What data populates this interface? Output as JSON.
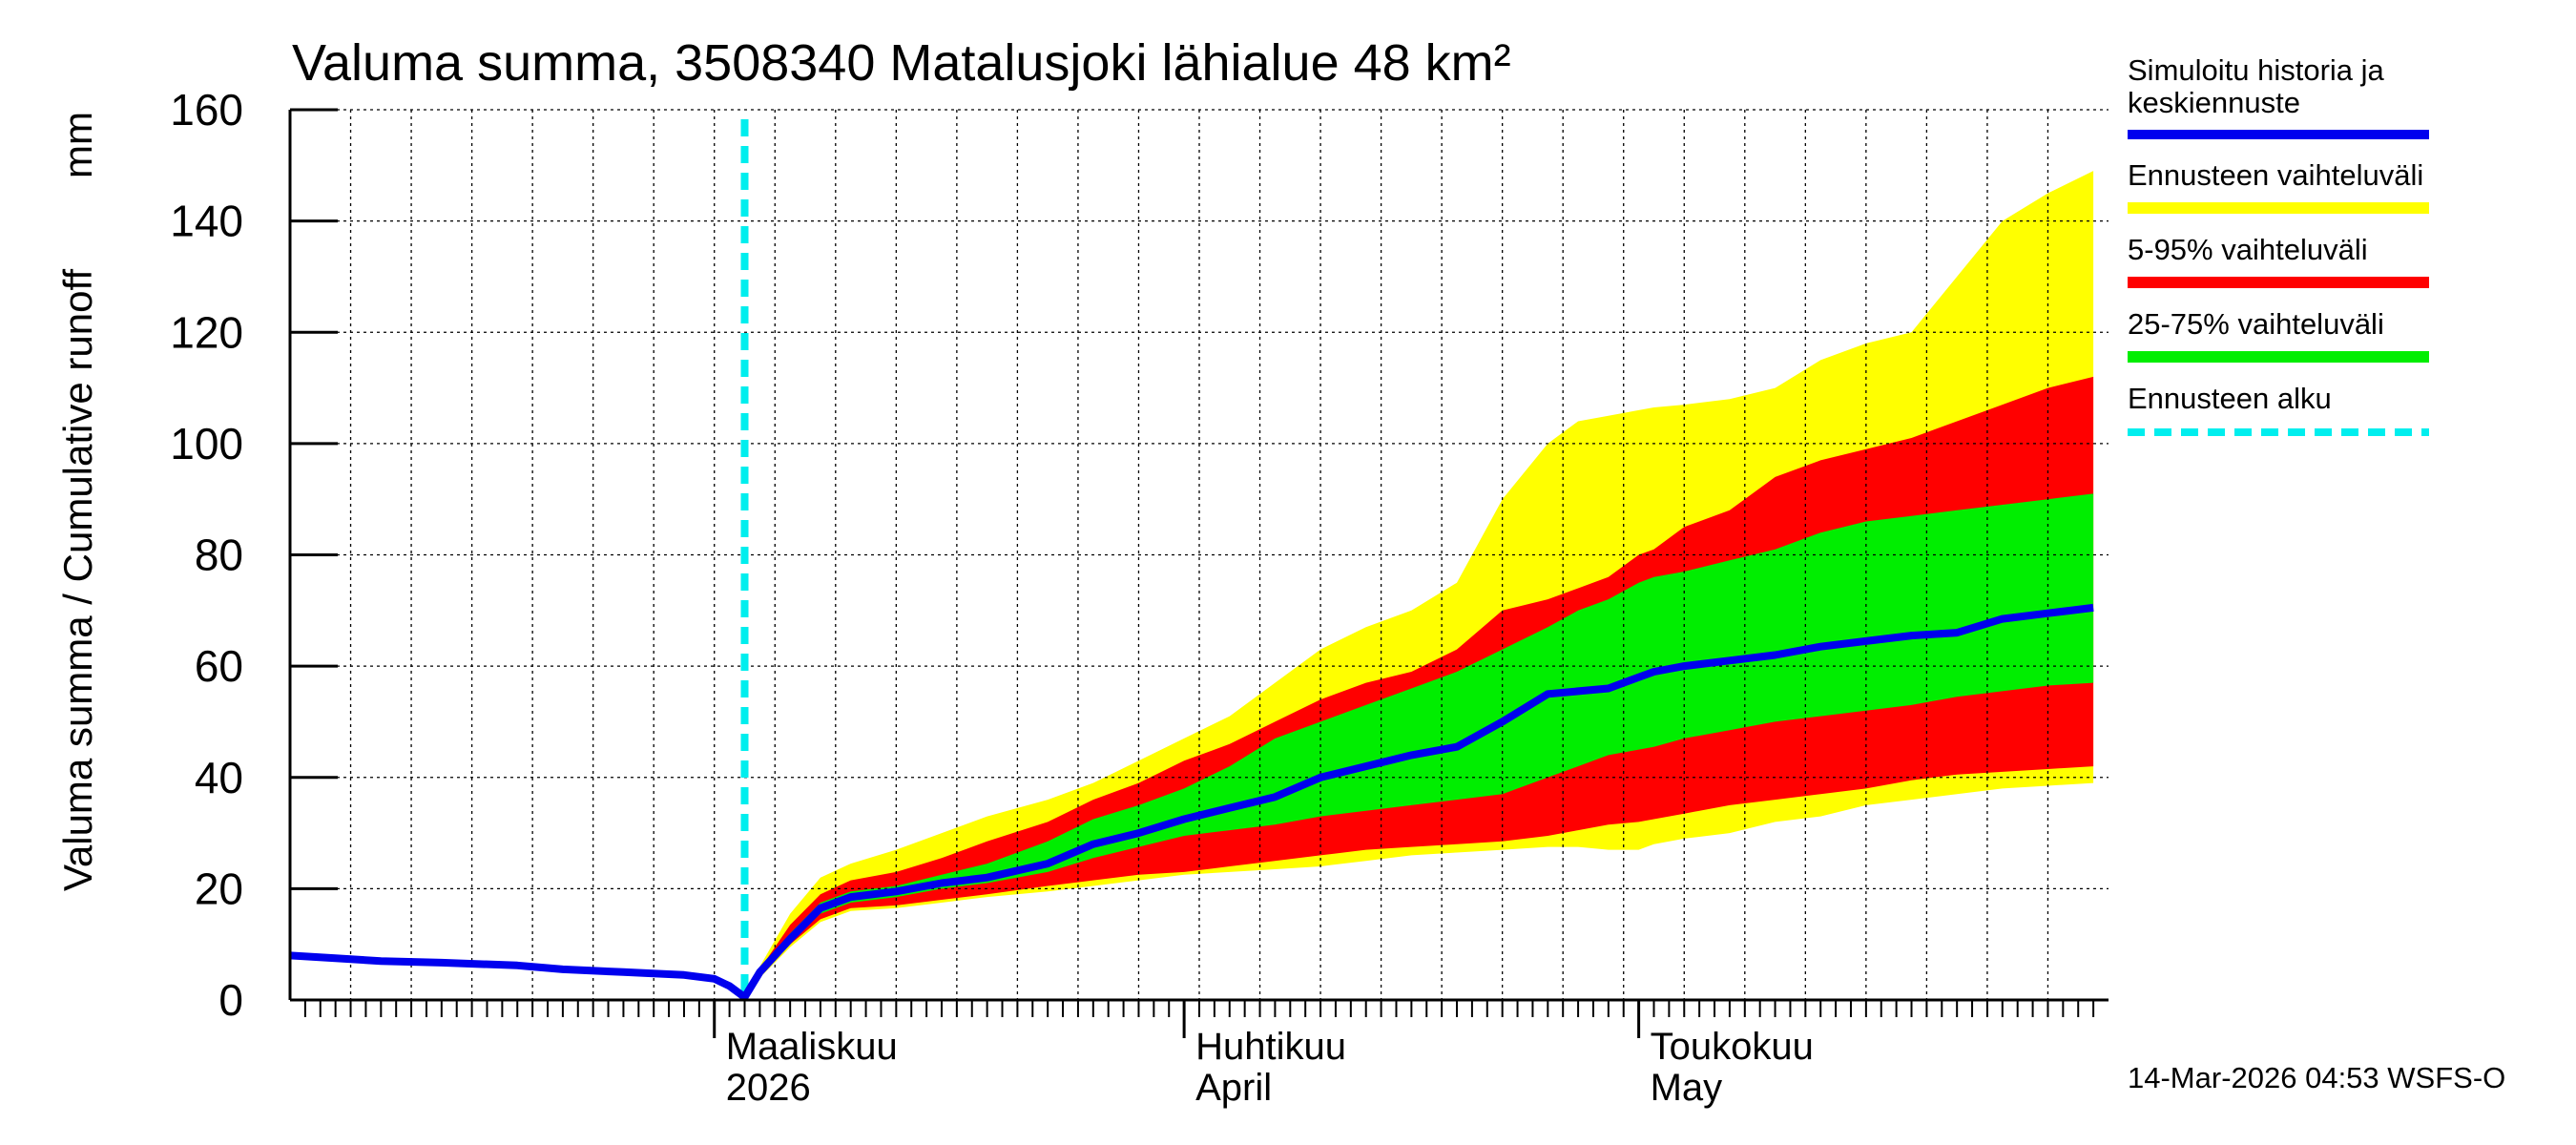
{
  "chart_data": {
    "type": "area",
    "title": "Valuma summa, 3508340 Matalusjoki lähialue 48 km²",
    "ylabel_left": "Valuma summa / Cumulative runoff",
    "ylabel_right": "mm",
    "ylim": [
      0,
      160
    ],
    "yticks": [
      "0",
      "20",
      "40",
      "60",
      "80",
      "100",
      "120",
      "140",
      "160"
    ],
    "x_start": "2026-02-01",
    "x_end": "2026-05-31",
    "forecast_start_day": 30,
    "months": [
      {
        "label1": "Maaliskuu",
        "label2": "2026",
        "day": 28
      },
      {
        "label1": "Huhtikuu",
        "label2": "April",
        "day": 59
      },
      {
        "label1": "Toukokuu",
        "label2": "May",
        "day": 89
      }
    ],
    "day": [
      0,
      3,
      6,
      10,
      15,
      18,
      22,
      26,
      28,
      29,
      30,
      31,
      33,
      35,
      37,
      40,
      43,
      46,
      50,
      53,
      56,
      59,
      62,
      65,
      68,
      71,
      74,
      77,
      80,
      83,
      85,
      87,
      89,
      90,
      92,
      95,
      98,
      101,
      104,
      107,
      110,
      113,
      116,
      119
    ],
    "median": [
      8,
      7.5,
      7,
      6.7,
      6.2,
      5.5,
      5,
      4.5,
      3.8,
      2.5,
      0.5,
      5,
      11,
      16.5,
      18.5,
      19.5,
      21,
      22,
      24.5,
      28,
      30,
      32.5,
      34.5,
      36.5,
      40,
      42,
      44,
      45.5,
      50,
      55,
      55.5,
      56,
      58,
      59,
      60,
      61,
      62,
      63.5,
      64.5,
      65.5,
      66,
      68.5,
      69.5,
      70.5
    ],
    "p25": [
      null,
      null,
      null,
      null,
      null,
      null,
      null,
      null,
      null,
      null,
      0.5,
      5,
      10.5,
      15.5,
      17.5,
      18.5,
      20,
      21,
      23,
      25.5,
      27.5,
      29.5,
      30.5,
      31.5,
      33,
      34,
      35,
      36,
      37,
      40,
      42,
      44,
      45,
      45.5,
      47,
      48.5,
      50,
      51,
      52,
      53,
      54.5,
      55.5,
      56.5,
      57
    ],
    "p75": [
      null,
      null,
      null,
      null,
      null,
      null,
      null,
      null,
      null,
      null,
      0.5,
      5,
      12,
      17.5,
      19.5,
      20.5,
      22.5,
      24.5,
      28.5,
      32.5,
      35,
      38,
      42,
      47,
      50,
      53,
      56,
      59,
      63,
      67,
      70,
      72,
      75,
      76,
      77,
      79,
      81,
      84,
      86,
      87,
      88,
      89,
      90,
      91
    ],
    "p5": [
      null,
      null,
      null,
      null,
      null,
      null,
      null,
      null,
      null,
      null,
      0.5,
      4.5,
      10,
      14.5,
      16.5,
      17,
      18,
      19,
      20.5,
      21.5,
      22.5,
      23,
      24,
      25,
      26,
      27,
      27.5,
      28,
      28.5,
      29.5,
      30.5,
      31.5,
      32,
      32.5,
      33.5,
      35,
      36,
      37,
      38,
      39.5,
      40.5,
      41,
      41.5,
      42
    ],
    "p95": [
      null,
      null,
      null,
      null,
      null,
      null,
      null,
      null,
      null,
      null,
      0.5,
      5.5,
      13.5,
      19,
      21.5,
      23,
      25.5,
      28.5,
      32,
      36,
      39,
      43,
      46,
      50,
      54,
      57,
      59,
      63,
      70,
      72,
      74,
      76,
      80,
      81,
      85,
      88,
      94,
      97,
      99,
      101,
      104,
      107,
      110,
      112
    ],
    "pmin": [
      null,
      null,
      null,
      null,
      null,
      null,
      null,
      null,
      null,
      null,
      0.5,
      4,
      9.5,
      14,
      16,
      16.5,
      17.5,
      18.5,
      19.5,
      20.5,
      21.5,
      22.5,
      23,
      23.5,
      24,
      25,
      26,
      26.5,
      27,
      27.5,
      27.5,
      27,
      27,
      28,
      29,
      30,
      32,
      33,
      35,
      36,
      37,
      38,
      38.5,
      39
    ],
    "pmax": [
      null,
      null,
      null,
      null,
      null,
      null,
      null,
      null,
      null,
      null,
      0.5,
      6,
      15.5,
      22,
      24.5,
      27,
      30,
      33,
      36,
      39,
      43,
      47,
      51,
      57,
      63,
      67,
      70,
      75,
      90,
      100,
      104,
      105,
      106,
      106.5,
      107,
      108,
      110,
      115,
      118,
      120,
      130,
      140,
      145,
      149
    ],
    "series": [
      {
        "name": "Simuloitu historia ja keskiennuste",
        "label1": "Simuloitu historia ja",
        "label2": "keskiennuste",
        "color": "#0000ee"
      },
      {
        "name": "Ennusteen vaihteluväli",
        "color": "#ffff00"
      },
      {
        "name": "5-95% vaihteluväli",
        "color": "#ff0000"
      },
      {
        "name": "25-75% vaihteluväli",
        "color": "#00ee00"
      },
      {
        "name": "Ennusteen alku",
        "color": "#00eeee"
      }
    ]
  },
  "footer": "14-Mar-2026 04:53 WSFS-O"
}
